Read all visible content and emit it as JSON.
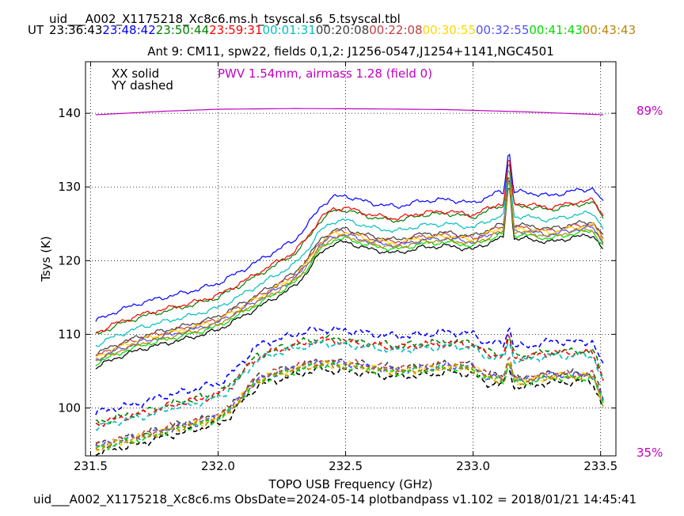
{
  "header": {
    "filename": "uid___A002_X1175218_Xc8c6.ms.h_tsyscal.s6_5.tsyscal.tbl",
    "ut_label": "UT",
    "times": [
      {
        "text": "23:36:43",
        "color": "#000000"
      },
      {
        "text": "23:48:42",
        "color": "#0000ff"
      },
      {
        "text": "23:50:44",
        "color": "#008000"
      },
      {
        "text": "23:59:31",
        "color": "#ff0000"
      },
      {
        "text": "00:01:31",
        "color": "#00bfbf"
      },
      {
        "text": "00:20:08",
        "color": "#404040"
      },
      {
        "text": "00:22:08",
        "color": "#c04040"
      },
      {
        "text": "00:30:55",
        "color": "#ffd700"
      },
      {
        "text": "00:32:55",
        "color": "#5050ff"
      },
      {
        "text": "00:41:43",
        "color": "#00dd00"
      },
      {
        "text": "00:43:43",
        "color": "#b8860b"
      }
    ],
    "subtitle": "Ant 9: CM11,  spw22,  fields 0,1,2: J1256-0547,J1254+1141,NGC4501"
  },
  "annotations": {
    "xx": "XX solid",
    "yy": "YY dashed",
    "pwv": "PWV 1.54mm, airmass 1.28 (field 0)",
    "pwv_color": "#c000c0",
    "right_top": "89%",
    "right_bottom": "35%"
  },
  "footer": "uid___A002_X1175218_Xc8c6.ms  ObsDate=2024-05-14   plotbandpass v1.102 = 2018/01/21 14:45:41",
  "chart_data": {
    "type": "line",
    "xlabel": "TOPO USB Frequency (GHz)",
    "ylabel": "Tsys (K)",
    "xlim": [
      231.48,
      233.56
    ],
    "ylim": [
      93.5,
      147
    ],
    "xticks": [
      231.5,
      232.0,
      232.5,
      233.0,
      233.5
    ],
    "xtick_labels": [
      "231.5",
      "232.0",
      "232.5",
      "233.0",
      "233.5"
    ],
    "yticks": [
      100,
      110,
      120,
      130,
      140
    ],
    "ytick_labels": [
      "100",
      "110",
      "120",
      "130",
      "140"
    ],
    "grid": true,
    "freq_range": [
      231.52,
      233.51
    ],
    "xx_base_profile": {
      "x": [
        231.52,
        231.6,
        231.7,
        231.8,
        231.9,
        232.0,
        232.1,
        232.2,
        232.3,
        232.35,
        232.4,
        232.45,
        232.5,
        232.6,
        232.7,
        232.8,
        232.9,
        233.0,
        233.1,
        233.2,
        233.3,
        233.4,
        233.47,
        233.51
      ],
      "y": [
        105.5,
        106.8,
        108.0,
        108.8,
        109.6,
        110.6,
        112.5,
        114.5,
        116.5,
        118.5,
        121.0,
        122.3,
        122.5,
        121.5,
        121.0,
        121.8,
        122.0,
        121.5,
        123.0,
        123.0,
        122.5,
        123.2,
        123.5,
        121.5
      ]
    },
    "yy_base_profile": {
      "x": [
        231.52,
        231.6,
        231.7,
        231.8,
        231.9,
        232.0,
        232.05,
        232.1,
        232.15,
        232.2,
        232.3,
        232.4,
        232.5,
        232.6,
        232.7,
        232.8,
        232.9,
        233.0,
        233.05,
        233.1,
        233.2,
        233.3,
        233.4,
        233.47,
        233.51
      ],
      "y": [
        93.8,
        94.5,
        95.2,
        96.2,
        97.0,
        97.8,
        99.0,
        101.0,
        102.8,
        103.5,
        104.5,
        105.2,
        105.0,
        104.6,
        104.2,
        104.5,
        104.8,
        104.6,
        103.4,
        103.2,
        102.8,
        103.5,
        103.5,
        103.5,
        100.0
      ]
    },
    "spike": {
      "x": 233.14,
      "xx_peak": 136.2,
      "yy_peak": 111.5
    },
    "series": [
      {
        "time": "23:36:43",
        "color": "#000000",
        "xx_offset": 0.0,
        "yy_offset": 0.0
      },
      {
        "time": "23:48:42",
        "color": "#0000ff",
        "xx_offset": 6.3,
        "yy_offset": 5.5
      },
      {
        "time": "23:50:44",
        "color": "#008000",
        "xx_offset": 4.4,
        "yy_offset": 4.2
      },
      {
        "time": "23:59:31",
        "color": "#ff0000",
        "xx_offset": 4.7,
        "yy_offset": 4.0
      },
      {
        "time": "00:01:31",
        "color": "#00bfbf",
        "xx_offset": 3.0,
        "yy_offset": 3.6
      },
      {
        "time": "00:20:08",
        "color": "#404040",
        "xx_offset": 1.8,
        "yy_offset": 1.2
      },
      {
        "time": "00:22:08",
        "color": "#c04040",
        "xx_offset": 1.5,
        "yy_offset": 1.1
      },
      {
        "time": "00:30:55",
        "color": "#ffd700",
        "xx_offset": 1.3,
        "yy_offset": 0.8
      },
      {
        "time": "00:32:55",
        "color": "#5050ff",
        "xx_offset": 1.0,
        "yy_offset": 0.9
      },
      {
        "time": "00:41:43",
        "color": "#00dd00",
        "xx_offset": 0.5,
        "yy_offset": 0.6
      },
      {
        "time": "00:43:43",
        "color": "#b8860b",
        "xx_offset": 0.8,
        "yy_offset": 0.7
      }
    ],
    "atmosphere_curve": {
      "color": "#c000c0",
      "x": [
        231.52,
        231.8,
        232.0,
        232.3,
        232.6,
        232.9,
        233.2,
        233.51
      ],
      "y": [
        139.8,
        140.3,
        140.55,
        140.65,
        140.6,
        140.5,
        140.2,
        139.8
      ]
    }
  }
}
